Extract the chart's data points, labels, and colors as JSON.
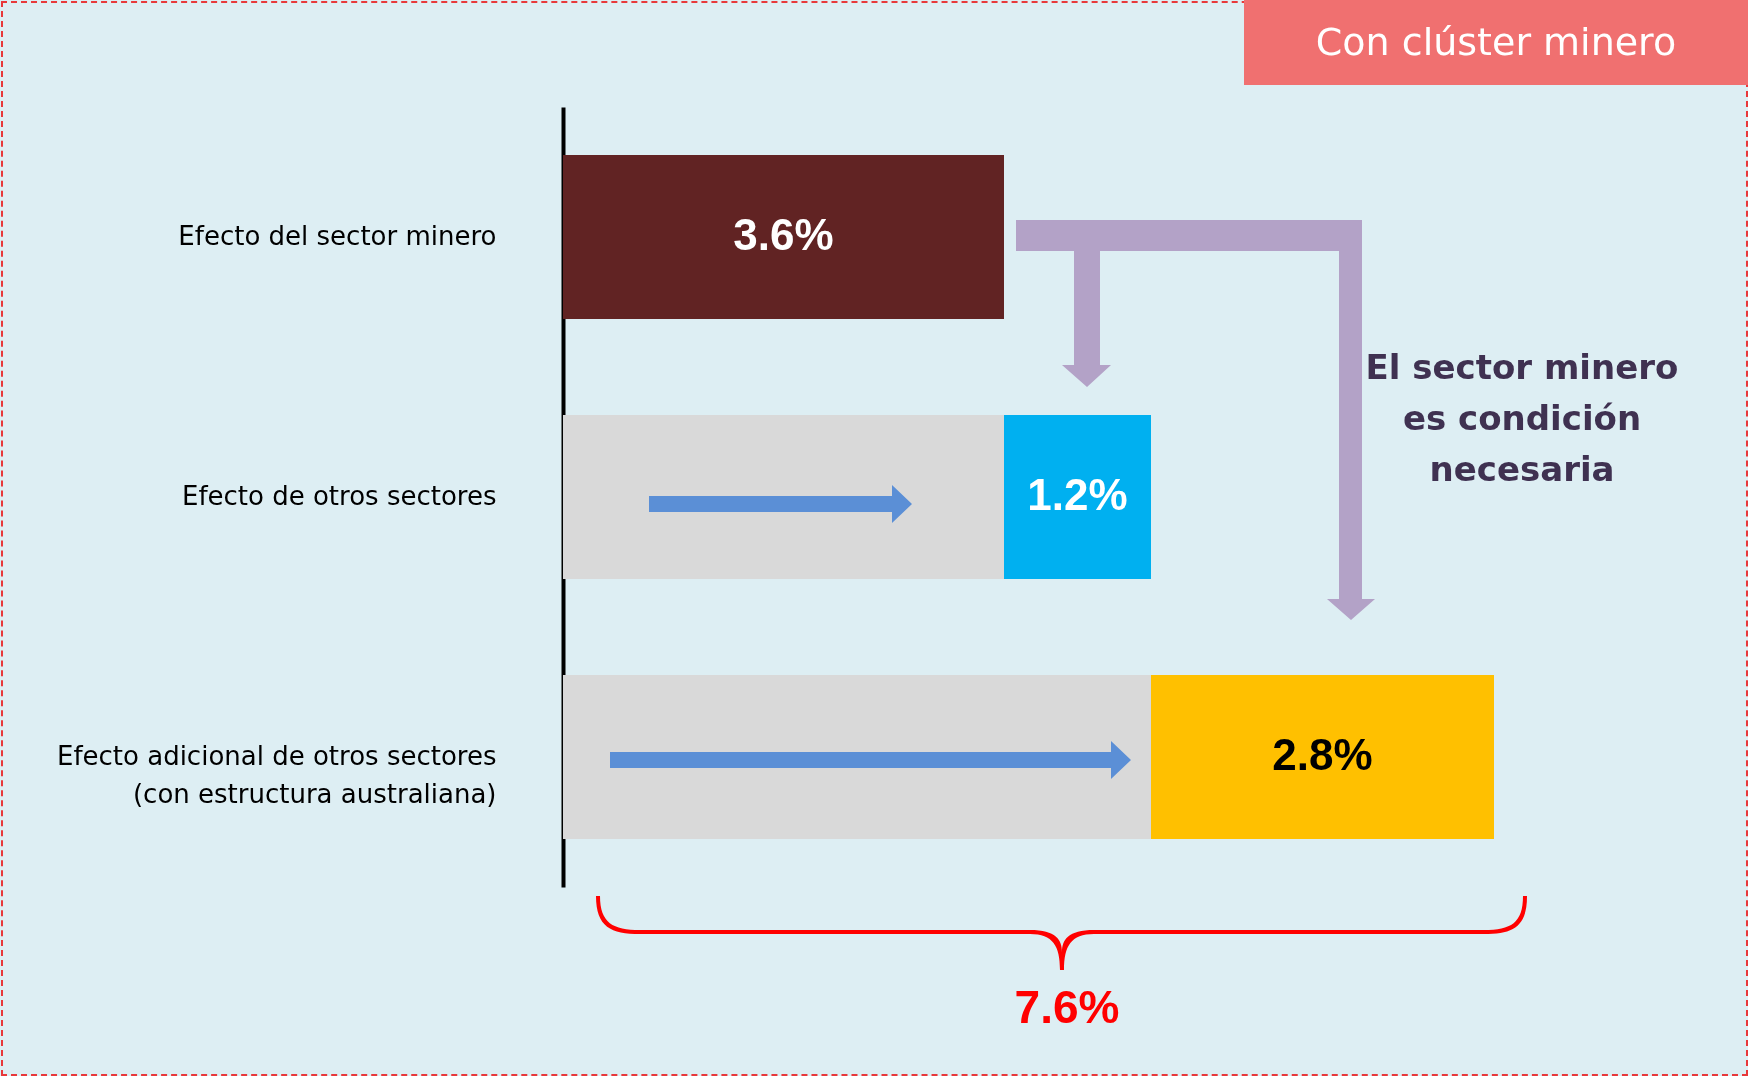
{
  "chart_data": {
    "type": "bar",
    "orientation": "horizontal",
    "stacked": true,
    "categories": [
      "Efecto del sector minero",
      "Efecto de otros sectores",
      "Efecto adicional de otros sectores\n(con estructura australiana)"
    ],
    "series": [
      {
        "color": "#d9d9d9",
        "values": [
          null,
          3.6,
          4.8
        ]
      },
      {
        "colors": [
          "#612323",
          "#00b0f0",
          "#ffc000"
        ],
        "values": [
          3.6,
          1.2,
          2.8
        ],
        "value_labels": [
          "3.6%",
          "1.2%",
          "2.8%"
        ]
      }
    ],
    "annotations": [
      "Con clúster minero",
      "El sector minero es condición necesaria",
      "7.6%"
    ],
    "tick_labels": "y",
    "grid": false,
    "legend": false
  }
}
